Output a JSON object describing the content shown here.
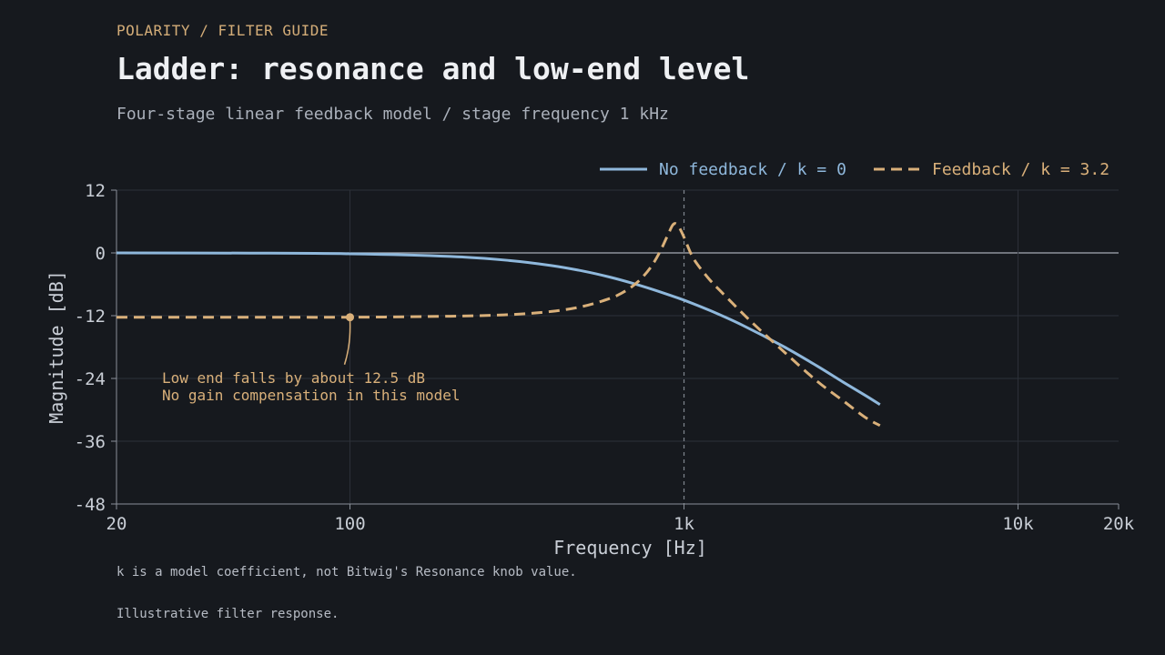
{
  "header": {
    "eyebrow": "POLARITY / FILTER GUIDE",
    "title": "Ladder: resonance and low-end level",
    "subtitle": "Four-stage linear feedback model / stage frequency 1 kHz"
  },
  "footnotes": {
    "note": "k is a model coefficient, not Bitwig's Resonance knob value.",
    "caption": "Illustrative filter response."
  },
  "colors": {
    "background": "#16191e",
    "grid": "#2c3139",
    "axis": "#8a9099",
    "series_no_feedback": "#8fb8dc",
    "series_feedback": "#d9b07a"
  },
  "chart_data": {
    "type": "line",
    "xlabel": "Frequency [Hz]",
    "ylabel": "Magnitude [dB]",
    "x_scale": "log",
    "xlim": [
      20,
      20000
    ],
    "ylim": [
      -48,
      12
    ],
    "x_ticks": [
      {
        "value": 20,
        "label": "20"
      },
      {
        "value": 100,
        "label": "100"
      },
      {
        "value": 1000,
        "label": "1k"
      },
      {
        "value": 10000,
        "label": "10k"
      },
      {
        "value": 20000,
        "label": "20k"
      }
    ],
    "y_ticks": [
      {
        "value": 12,
        "label": "12"
      },
      {
        "value": 0,
        "label": "0"
      },
      {
        "value": -12,
        "label": "-12"
      },
      {
        "value": -24,
        "label": "-24"
      },
      {
        "value": -36,
        "label": "-36"
      },
      {
        "value": -48,
        "label": "-48"
      }
    ],
    "grid": true,
    "legend_position": "top-right",
    "reference_line_x": 1000,
    "series": [
      {
        "name": "No feedback / k = 0",
        "style": "solid",
        "color": "#8fb8dc",
        "x": [
          20,
          50,
          100,
          200,
          300,
          400,
          500,
          600,
          700,
          800,
          900,
          1000,
          1200,
          1500,
          2000,
          2500,
          3000,
          3500,
          3860
        ],
        "y": [
          0,
          -0.04,
          -0.17,
          -0.67,
          -1.45,
          -2.41,
          -3.49,
          -4.63,
          -5.79,
          -6.92,
          -8.01,
          -9.03,
          -11.05,
          -13.86,
          -18.0,
          -21.6,
          -24.73,
          -27.3,
          -29.0
        ]
      },
      {
        "name": "Feedback / k = 3.2",
        "style": "dashed",
        "color": "#d9b07a",
        "x": [
          20,
          50,
          100,
          200,
          300,
          400,
          500,
          600,
          650,
          700,
          750,
          800,
          850,
          900,
          930,
          960,
          1000,
          1050,
          1100,
          1200,
          1300,
          1500,
          1700,
          2000,
          2500,
          3000,
          3500,
          3860
        ],
        "y": [
          -12.3,
          -12.3,
          -12.3,
          -12.1,
          -11.8,
          -11.2,
          -10.2,
          -8.7,
          -7.7,
          -6.4,
          -4.7,
          -2.5,
          0.4,
          3.8,
          5.5,
          5.2,
          3.0,
          -0.2,
          -2.3,
          -5.3,
          -7.6,
          -11.6,
          -14.9,
          -19.0,
          -24.5,
          -28.3,
          -31.5,
          -33.0
        ]
      }
    ],
    "annotation": {
      "x": 100,
      "y": -12.3,
      "lines": [
        "Low end falls by about 12.5 dB",
        "No gain compensation in this model"
      ]
    }
  }
}
